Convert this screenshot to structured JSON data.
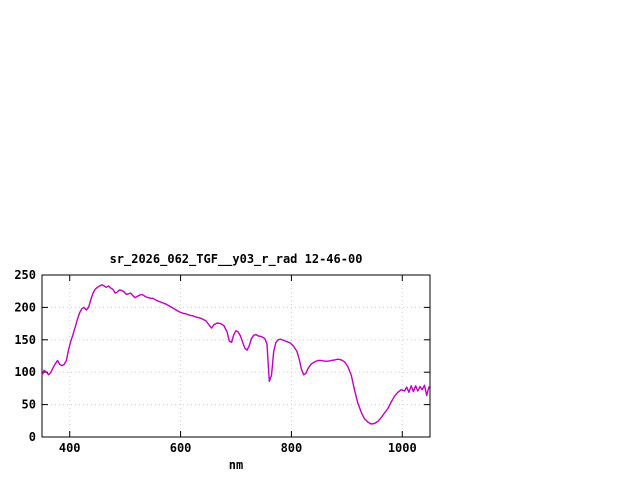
{
  "page": {
    "background": "#ffffff"
  },
  "chart_data": {
    "type": "line",
    "title": "sr_2026_062_TGF__y03_r_rad 12-46-00",
    "xlabel": "nm",
    "ylabel": "",
    "xlim": [
      350,
      1050
    ],
    "ylim": [
      0,
      250
    ],
    "xticks": [
      400,
      600,
      800,
      1000
    ],
    "yticks": [
      0,
      50,
      100,
      150,
      200,
      250
    ],
    "grid": true,
    "legend": "none",
    "line_color": "#c000c0",
    "series": [
      {
        "x": [
          350,
          354,
          358,
          362,
          366,
          370,
          374,
          378,
          382,
          386,
          390,
          394,
          398,
          402,
          406,
          410,
          414,
          418,
          422,
          426,
          430,
          434,
          438,
          442,
          446,
          450,
          454,
          458,
          462,
          466,
          470,
          474,
          478,
          482,
          486,
          490,
          494,
          498,
          502,
          506,
          510,
          514,
          518,
          522,
          526,
          530,
          534,
          538,
          542,
          546,
          550,
          556,
          562,
          568,
          574,
          580,
          586,
          592,
          598,
          604,
          610,
          616,
          622,
          628,
          634,
          640,
          646,
          652,
          656,
          660,
          666,
          672,
          678,
          684,
          688,
          692,
          696,
          700,
          704,
          708,
          712,
          716,
          720,
          724,
          728,
          732,
          736,
          740,
          746,
          752,
          756,
          760,
          764,
          768,
          772,
          776,
          780,
          786,
          792,
          798,
          804,
          810,
          814,
          818,
          822,
          826,
          830,
          836,
          842,
          848,
          854,
          860,
          866,
          872,
          878,
          884,
          890,
          896,
          902,
          908,
          914,
          920,
          926,
          932,
          938,
          944,
          950,
          956,
          962,
          968,
          974,
          980,
          986,
          992,
          998,
          1004,
          1008,
          1012,
          1016,
          1020,
          1024,
          1028,
          1032,
          1036,
          1040,
          1044,
          1048
        ],
        "y": [
          95,
          103,
          100,
          96,
          100,
          107,
          113,
          118,
          112,
          110,
          112,
          118,
          135,
          148,
          158,
          170,
          182,
          192,
          198,
          200,
          196,
          200,
          212,
          222,
          228,
          231,
          233,
          235,
          233,
          231,
          233,
          230,
          228,
          222,
          224,
          227,
          226,
          224,
          220,
          221,
          222,
          218,
          215,
          217,
          219,
          220,
          218,
          216,
          215,
          214,
          214,
          211,
          209,
          207,
          205,
          202,
          199,
          196,
          193,
          191,
          190,
          188,
          187,
          185,
          184,
          182,
          179,
          172,
          168,
          173,
          176,
          175,
          172,
          162,
          148,
          146,
          158,
          164,
          162,
          156,
          146,
          137,
          134,
          141,
          152,
          157,
          158,
          156,
          155,
          152,
          143,
          86,
          95,
          132,
          146,
          150,
          151,
          149,
          147,
          145,
          140,
          132,
          120,
          105,
          96,
          98,
          106,
          113,
          116,
          118,
          118,
          117,
          117,
          118,
          119,
          120,
          119,
          116,
          108,
          95,
          72,
          52,
          38,
          28,
          23,
          20,
          21,
          24,
          30,
          37,
          44,
          54,
          63,
          69,
          73,
          71,
          77,
          69,
          79,
          70,
          79,
          71,
          78,
          73,
          80,
          64,
          77
        ]
      }
    ]
  }
}
